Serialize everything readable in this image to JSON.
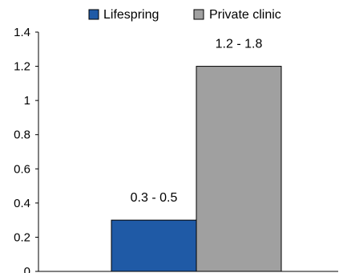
{
  "chart_data": {
    "type": "bar",
    "series": [
      {
        "name": "Lifespring",
        "value": 0.3,
        "label": "0.3 - 0.5",
        "color": "#1f5aa6"
      },
      {
        "name": "Private clinic",
        "value": 1.2,
        "label": "1.2 - 1.8",
        "color": "#a0a0a0"
      }
    ],
    "ylim": [
      0,
      1.4
    ],
    "yticks": [
      "0",
      "0.2",
      "0.4",
      "0.6",
      "0.8",
      "1",
      "1.2",
      "1.4"
    ],
    "grid": false,
    "legend_position": "top"
  }
}
